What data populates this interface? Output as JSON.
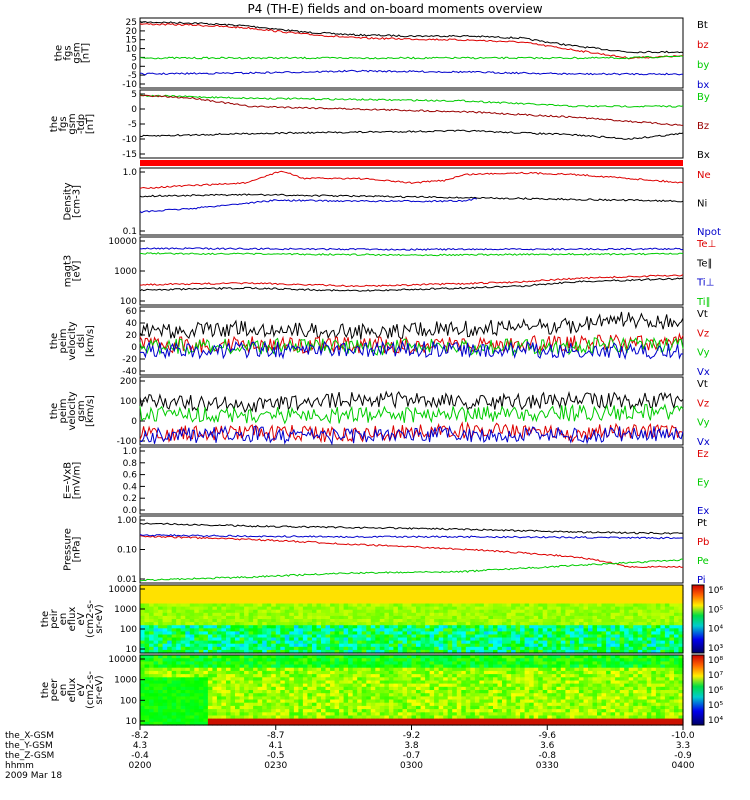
{
  "title": "P4 (TH-E) fields and on-board moments overview",
  "colors": {
    "black": "#000000",
    "red": "#dd0000",
    "green": "#00cc00",
    "blue": "#0000cc",
    "darkred": "#990000"
  },
  "ephemeris": {
    "labels": [
      "the_X-GSM",
      "the_Y-GSM",
      "the_Z-GSM",
      "hhmm",
      "2009 Mar 18"
    ],
    "columns": [
      [
        "-8.2",
        "4.3",
        "-0.4",
        "0200"
      ],
      [
        "-8.7",
        "4.1",
        "-0.5",
        "0230"
      ],
      [
        "-9.2",
        "3.8",
        "-0.7",
        "0300"
      ],
      [
        "-9.6",
        "3.6",
        "-0.8",
        "0330"
      ],
      [
        "-10.0",
        "3.3",
        "-0.9",
        "0400"
      ]
    ]
  },
  "chart_data": [
    {
      "type": "line",
      "ylabel": "the\nfgs\ngsm\n[nT]",
      "ylim": [
        -10,
        25
      ],
      "yticks": [
        "25",
        "20",
        "15",
        "10",
        "5",
        "0",
        "-5",
        "-10"
      ],
      "series": [
        {
          "name": "Bt",
          "color": "black",
          "values": [
            [
              0,
              23
            ],
            [
              10,
              22.5
            ],
            [
              20,
              21
            ],
            [
              30,
              18
            ],
            [
              40,
              16.5
            ],
            [
              50,
              16
            ],
            [
              60,
              16
            ],
            [
              70,
              15
            ],
            [
              80,
              11
            ],
            [
              90,
              8
            ],
            [
              100,
              8
            ]
          ]
        },
        {
          "name": "bz",
          "color": "red",
          "values": [
            [
              0,
              22
            ],
            [
              10,
              21.5
            ],
            [
              20,
              20
            ],
            [
              30,
              17
            ],
            [
              40,
              15
            ],
            [
              50,
              14.5
            ],
            [
              60,
              14
            ],
            [
              70,
              13
            ],
            [
              80,
              9
            ],
            [
              90,
              5
            ],
            [
              100,
              6
            ]
          ]
        },
        {
          "name": "by",
          "color": "green",
          "values": [
            [
              0,
              5
            ],
            [
              20,
              5
            ],
            [
              40,
              5
            ],
            [
              60,
              5
            ],
            [
              80,
              5
            ],
            [
              90,
              5
            ],
            [
              100,
              6
            ]
          ]
        },
        {
          "name": "bx",
          "color": "blue",
          "values": [
            [
              0,
              -3
            ],
            [
              20,
              -2.5
            ],
            [
              40,
              -1.5
            ],
            [
              60,
              -2
            ],
            [
              80,
              -3
            ],
            [
              100,
              -3
            ]
          ]
        }
      ]
    },
    {
      "type": "line",
      "ylabel": "the\nfgs\ngsm\n-tdp\n[nT]",
      "ylim": [
        -18,
        7
      ],
      "yticks": [
        "5",
        "0",
        "-5",
        "-10",
        "-15"
      ],
      "series": [
        {
          "name": "By",
          "color": "green",
          "values": [
            [
              0,
              5
            ],
            [
              20,
              4
            ],
            [
              40,
              3.5
            ],
            [
              60,
              3
            ],
            [
              80,
              1
            ],
            [
              100,
              1
            ]
          ]
        },
        {
          "name": "Bz",
          "color": "darkred",
          "values": [
            [
              0,
              5
            ],
            [
              10,
              4
            ],
            [
              20,
              1
            ],
            [
              40,
              0
            ],
            [
              60,
              -1
            ],
            [
              80,
              -3
            ],
            [
              100,
              -6
            ]
          ]
        },
        {
          "name": "Bx",
          "color": "black",
          "values": [
            [
              0,
              -10
            ],
            [
              20,
              -9
            ],
            [
              40,
              -8.5
            ],
            [
              60,
              -8
            ],
            [
              80,
              -9.5
            ],
            [
              90,
              -11
            ],
            [
              100,
              -9
            ]
          ]
        }
      ]
    },
    {
      "type": "line",
      "ylabel": "Density\n[cm-3]",
      "log": true,
      "ylim": [
        0.1,
        1.0
      ],
      "yticks": [
        "1.0",
        "0.1"
      ],
      "series": [
        {
          "name": "Ne",
          "color": "red",
          "values": [
            [
              0,
              0.5
            ],
            [
              10,
              0.55
            ],
            [
              20,
              0.6
            ],
            [
              26,
              0.9
            ],
            [
              30,
              0.7
            ],
            [
              40,
              0.7
            ],
            [
              50,
              0.6
            ],
            [
              56,
              0.65
            ],
            [
              60,
              0.8
            ],
            [
              70,
              0.85
            ],
            [
              80,
              0.8
            ],
            [
              90,
              0.7
            ],
            [
              100,
              0.6
            ]
          ]
        },
        {
          "name": "Ni",
          "color": "black",
          "values": [
            [
              0,
              0.38
            ],
            [
              20,
              0.4
            ],
            [
              40,
              0.38
            ],
            [
              60,
              0.36
            ],
            [
              80,
              0.34
            ],
            [
              100,
              0.32
            ]
          ]
        },
        {
          "name": "Npot",
          "color": "blue",
          "values": [
            [
              0,
              0.22
            ],
            [
              10,
              0.25
            ],
            [
              20,
              0.3
            ],
            [
              25,
              0.33
            ],
            [
              40,
              0.32
            ],
            [
              60,
              0.32
            ],
            [
              62,
              0.35
            ]
          ]
        }
      ]
    },
    {
      "type": "line",
      "ylabel": "magt3\n[eV]",
      "log": true,
      "ylim": [
        100,
        15000
      ],
      "yticks": [
        "10000",
        "1000",
        "100"
      ],
      "series": [
        {
          "name": "Te⊥",
          "color": "red",
          "values": [
            [
              0,
              450
            ],
            [
              20,
              500
            ],
            [
              40,
              400
            ],
            [
              60,
              480
            ],
            [
              70,
              550
            ],
            [
              80,
              700
            ],
            [
              100,
              900
            ]
          ]
        },
        {
          "name": "Te∥",
          "color": "black",
          "values": [
            [
              0,
              300
            ],
            [
              20,
              350
            ],
            [
              40,
              280
            ],
            [
              60,
              350
            ],
            [
              70,
              400
            ],
            [
              80,
              550
            ],
            [
              100,
              700
            ]
          ]
        },
        {
          "name": "Ti⊥",
          "color": "blue",
          "values": [
            [
              0,
              6500
            ],
            [
              50,
              6000
            ],
            [
              100,
              6200
            ]
          ]
        },
        {
          "name": "Ti∥",
          "color": "green",
          "values": [
            [
              0,
              4500
            ],
            [
              50,
              4000
            ],
            [
              100,
              4300
            ]
          ]
        }
      ]
    },
    {
      "type": "line",
      "ylabel": "the\npeim\nvelocity\ndsl\n[km/s]",
      "ylim": [
        -45,
        65
      ],
      "yticks": [
        "60",
        "40",
        "20",
        "0",
        "-20",
        "-40"
      ],
      "series": [
        {
          "name": "Vt",
          "color": "black",
          "values": [
            [
              0,
              25
            ],
            [
              20,
              30
            ],
            [
              40,
              25
            ],
            [
              60,
              30
            ],
            [
              80,
              35
            ],
            [
              88,
              45
            ],
            [
              100,
              40
            ]
          ]
        },
        {
          "name": "Vz",
          "color": "red",
          "values": [
            [
              0,
              5
            ],
            [
              50,
              3
            ],
            [
              100,
              8
            ]
          ]
        },
        {
          "name": "Vy",
          "color": "green",
          "values": [
            [
              0,
              2
            ],
            [
              50,
              0
            ],
            [
              100,
              3
            ]
          ]
        },
        {
          "name": "Vx",
          "color": "blue",
          "values": [
            [
              0,
              -5
            ],
            [
              50,
              -3
            ],
            [
              100,
              -6
            ]
          ]
        }
      ]
    },
    {
      "type": "line",
      "ylabel": "the\npeim\nvelocity\ngsm\n[km/s]",
      "ylim": [
        -110,
        210
      ],
      "yticks": [
        "200",
        "100",
        "0",
        "-100"
      ],
      "series": [
        {
          "name": "Vt",
          "color": "black",
          "values": [
            [
              0,
              100
            ],
            [
              20,
              80
            ],
            [
              40,
              110
            ],
            [
              60,
              90
            ],
            [
              80,
              100
            ],
            [
              100,
              95
            ]
          ]
        },
        {
          "name": "Vz",
          "color": "red",
          "values": [
            [
              0,
              -60
            ],
            [
              20,
              -50
            ],
            [
              40,
              -60
            ],
            [
              60,
              -40
            ],
            [
              80,
              -55
            ],
            [
              100,
              -40
            ]
          ]
        },
        {
          "name": "Vy",
          "color": "green",
          "values": [
            [
              0,
              40
            ],
            [
              20,
              30
            ],
            [
              40,
              30
            ],
            [
              60,
              35
            ],
            [
              80,
              40
            ],
            [
              100,
              45
            ]
          ]
        },
        {
          "name": "Vx",
          "color": "blue",
          "values": [
            [
              0,
              -70
            ],
            [
              20,
              -60
            ],
            [
              40,
              -70
            ],
            [
              60,
              -60
            ],
            [
              80,
              -65
            ],
            [
              100,
              -55
            ]
          ]
        }
      ]
    },
    {
      "type": "line",
      "ylabel": "E=-VxB\n[mV/m]",
      "ylim": [
        0,
        1.0
      ],
      "yticks": [
        "1.0",
        "0.8",
        "0.6",
        "0.4",
        "0.2",
        "0.0"
      ],
      "series": [
        {
          "name": "Ez",
          "color": "red",
          "values": []
        },
        {
          "name": "Ey",
          "color": "green",
          "values": []
        },
        {
          "name": "Ex",
          "color": "blue",
          "values": []
        }
      ]
    },
    {
      "type": "line",
      "ylabel": "Pressure\n[nPa]",
      "log": true,
      "ylim": [
        0.01,
        1.0
      ],
      "yticks": [
        "1.00",
        "0.10",
        "0.01"
      ],
      "series": [
        {
          "name": "Pt",
          "color": "black",
          "values": [
            [
              0,
              0.6
            ],
            [
              20,
              0.5
            ],
            [
              40,
              0.45
            ],
            [
              60,
              0.4
            ],
            [
              80,
              0.33
            ],
            [
              100,
              0.3
            ]
          ]
        },
        {
          "name": "Pb",
          "color": "red",
          "values": [
            [
              0,
              0.25
            ],
            [
              20,
              0.2
            ],
            [
              40,
              0.14
            ],
            [
              60,
              0.1
            ],
            [
              80,
              0.06
            ],
            [
              90,
              0.03
            ],
            [
              100,
              0.03
            ]
          ]
        },
        {
          "name": "Pe",
          "color": "green",
          "values": [
            [
              0,
              0.012
            ],
            [
              20,
              0.015
            ],
            [
              40,
              0.02
            ],
            [
              60,
              0.022
            ],
            [
              75,
              0.03
            ],
            [
              90,
              0.04
            ],
            [
              100,
              0.05
            ]
          ]
        },
        {
          "name": "Pi",
          "color": "blue",
          "values": [
            [
              0,
              0.27
            ],
            [
              20,
              0.25
            ],
            [
              40,
              0.24
            ],
            [
              60,
              0.24
            ],
            [
              80,
              0.23
            ],
            [
              100,
              0.22
            ]
          ]
        }
      ]
    },
    {
      "type": "heatmap",
      "ylabel": "the\npeir\nen\neflux\neV\n(cm2-s-\nsr-eV)",
      "yticks": [
        "10000",
        "1000",
        "100",
        "10"
      ],
      "colorbar": [
        "10⁶",
        "10⁵",
        "10⁴",
        "10³"
      ]
    },
    {
      "type": "heatmap",
      "ylabel": "the\npeer\nen\neflux\neV\n(cm2-s-\nsr-eV)",
      "yticks": [
        "10000",
        "1000",
        "100",
        "10"
      ],
      "colorbar": [
        "10⁸",
        "10⁷",
        "10⁶",
        "10⁵",
        "10⁴"
      ]
    }
  ]
}
